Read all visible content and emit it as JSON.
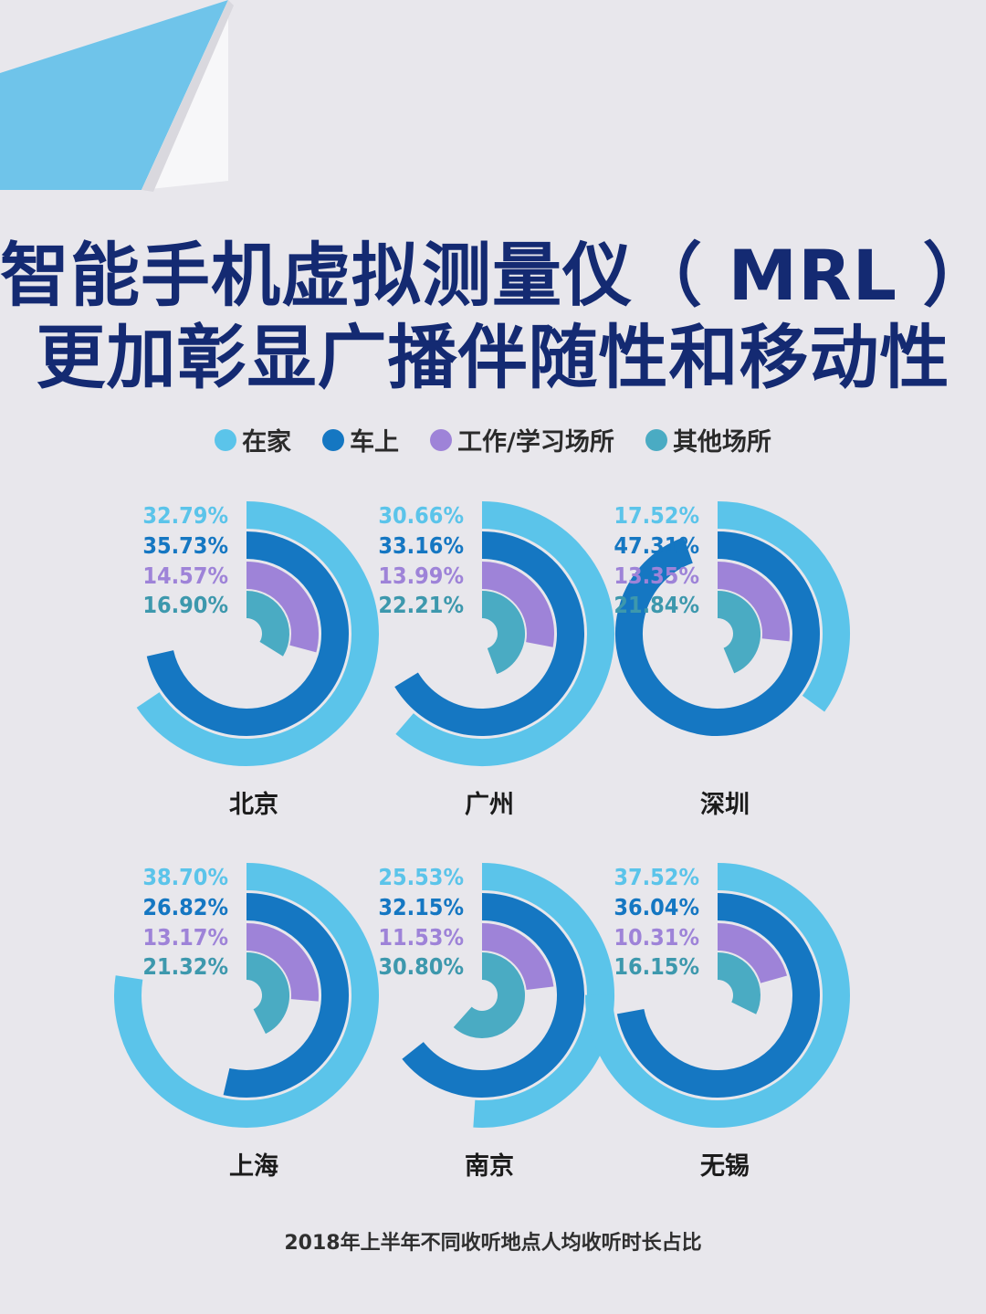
{
  "title_line1": "智能手机虚拟测量仪（ MRL ）",
  "title_line2": "更加彰显广播伴随性和移动性",
  "legend": [
    {
      "label": "在家",
      "color": "#5bc4ea"
    },
    {
      "label": "车上",
      "color": "#1577c2"
    },
    {
      "label": "工作/学习场所",
      "color": "#9e83d8"
    },
    {
      "label": "其他场所",
      "color": "#4aabc3"
    }
  ],
  "footnote": "2018年上半年不同收听地点人均收听时长占比",
  "chart_data": {
    "type": "radial-bar",
    "categories": [
      "在家",
      "车上",
      "工作/学习场所",
      "其他场所"
    ],
    "cities": [
      {
        "name": "北京",
        "values": [
          32.79,
          35.73,
          14.57,
          16.9
        ],
        "labels": [
          "32.79%",
          "35.73%",
          "14.57%",
          "16.90%"
        ]
      },
      {
        "name": "广州",
        "values": [
          30.66,
          33.16,
          13.99,
          22.21
        ],
        "labels": [
          "30.66%",
          "33.16%",
          "13.99%",
          "22.21%"
        ]
      },
      {
        "name": "深圳",
        "values": [
          17.52,
          47.31,
          13.35,
          21.84
        ],
        "labels": [
          "17.52%",
          "47.31%",
          "13.35%",
          "21.84%"
        ]
      },
      {
        "name": "上海",
        "values": [
          38.7,
          26.82,
          13.17,
          21.32
        ],
        "labels": [
          "38.70%",
          "26.82%",
          "13.17%",
          "21.32%"
        ]
      },
      {
        "name": "南京",
        "values": [
          25.53,
          32.15,
          11.53,
          30.8
        ],
        "labels": [
          "25.53%",
          "32.15%",
          "11.53%",
          "30.80%"
        ]
      },
      {
        "name": "无锡",
        "values": [
          37.52,
          36.04,
          10.31,
          16.15
        ],
        "labels": [
          "37.52%",
          "36.04%",
          "10.31%",
          "16.15%"
        ]
      }
    ]
  }
}
